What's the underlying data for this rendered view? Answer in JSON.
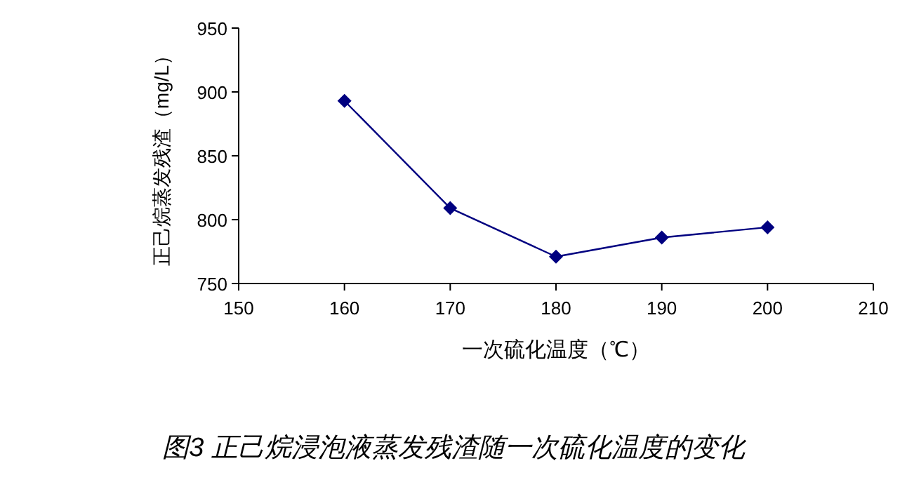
{
  "chart_data": {
    "type": "line",
    "title": "图3  正己烷浸泡液蒸发残渣随一次硫化温度的变化",
    "xlabel": "一次硫化温度（℃）",
    "ylabel": "正己烷蒸发残渣（mg/L）",
    "x": [
      160,
      170,
      180,
      190,
      200
    ],
    "series": [
      {
        "color": "#000080",
        "values": [
          893,
          809,
          771,
          786,
          794
        ]
      }
    ],
    "xlim": [
      150,
      210
    ],
    "xticks": [
      150,
      160,
      170,
      180,
      190,
      200,
      210
    ],
    "ylim": [
      750,
      950
    ],
    "yticks": [
      750,
      800,
      850,
      900,
      950
    ],
    "marker": "diamond",
    "line_style": "solid",
    "grid": false
  }
}
